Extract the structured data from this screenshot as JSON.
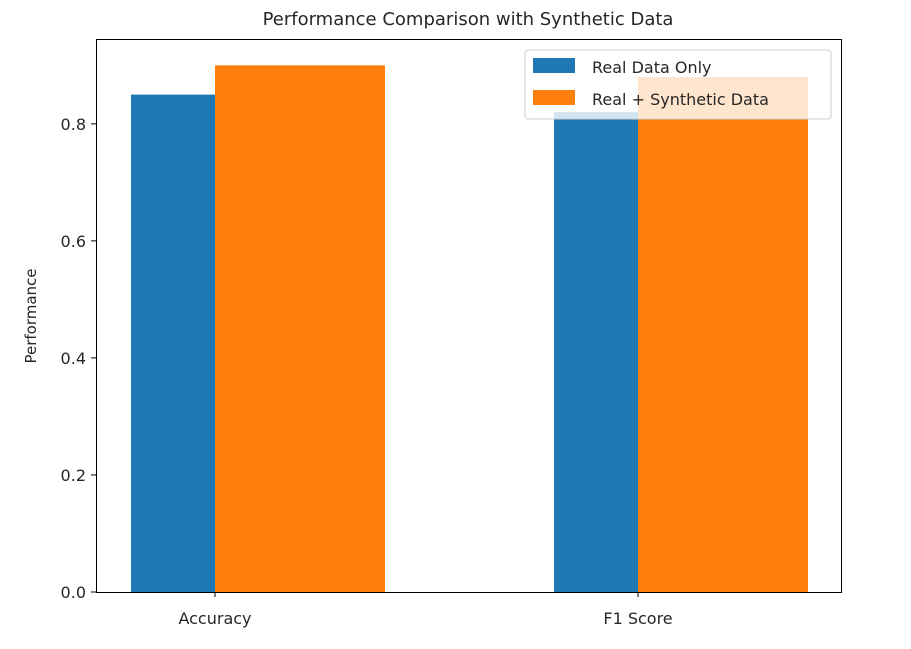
{
  "chart_data": {
    "type": "bar",
    "title": "Performance Comparison with Synthetic Data",
    "xlabel": "",
    "ylabel": "Performance",
    "categories": [
      "Accuracy",
      "F1 Score"
    ],
    "series": [
      {
        "name": "Real Data Only",
        "values": [
          0.85,
          0.82
        ],
        "color": "#1f77b4"
      },
      {
        "name": "Real + Synthetic Data",
        "values": [
          0.9,
          0.88
        ],
        "color": "#ff7f0e"
      }
    ],
    "ylim": [
      0,
      0.945
    ],
    "yticks": [
      "0.0",
      "0.2",
      "0.4",
      "0.6",
      "0.8"
    ],
    "grid": false,
    "legend_position": "top-right"
  }
}
